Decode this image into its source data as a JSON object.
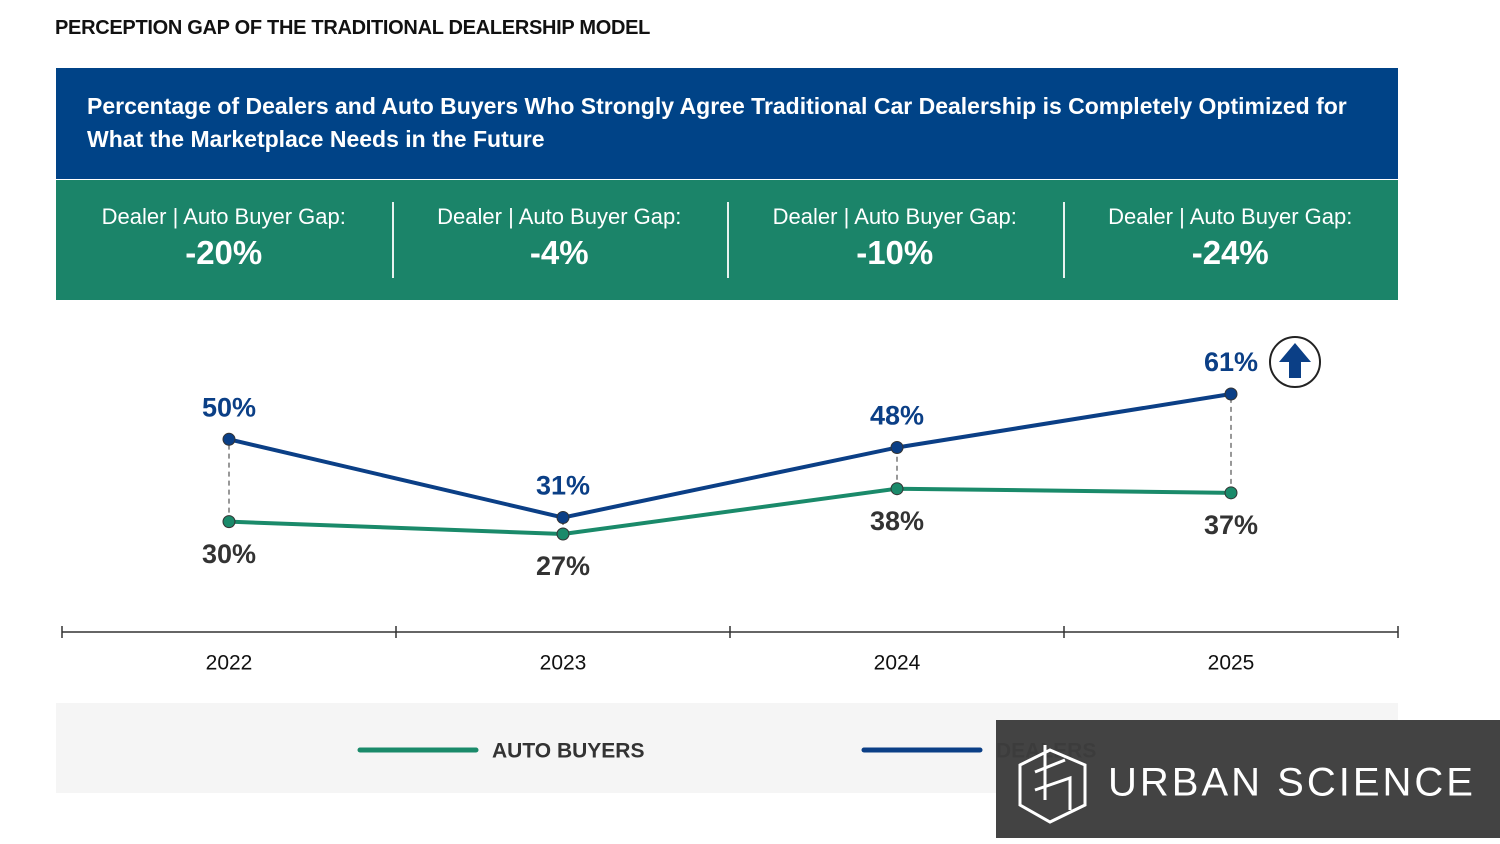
{
  "chart_data": {
    "type": "line",
    "page_title": "PERCEPTION GAP OF THE TRADITIONAL DEALERSHIP MODEL",
    "title": "Percentage of Dealers and Auto Buyers Who Strongly Agree Traditional Car Dealership is Completely Optimized for What the Marketplace Needs in the Future",
    "gap_labels": [
      "Dealer | Auto Buyer Gap:",
      "Dealer | Auto Buyer Gap:",
      "Dealer | Auto Buyer Gap:",
      "Dealer | Auto Buyer Gap:"
    ],
    "gaps": [
      -20,
      -4,
      -10,
      -24
    ],
    "gap_value_labels": [
      "-20%",
      "-4%",
      "-10%",
      "-24%"
    ],
    "categories": [
      "2022",
      "2023",
      "2024",
      "2025"
    ],
    "series": [
      {
        "name": "AUTO BUYERS",
        "color": "#1a8a6a",
        "values": [
          30,
          27,
          38,
          37
        ],
        "value_labels": [
          "30%",
          "27%",
          "38%",
          "37%"
        ]
      },
      {
        "name": "DEALERS",
        "color": "#0b3f86",
        "values": [
          50,
          31,
          48,
          61
        ],
        "value_labels": [
          "50%",
          "31%",
          "48%",
          "61%"
        ]
      }
    ],
    "watermark": "URBAN SCIENCE"
  }
}
